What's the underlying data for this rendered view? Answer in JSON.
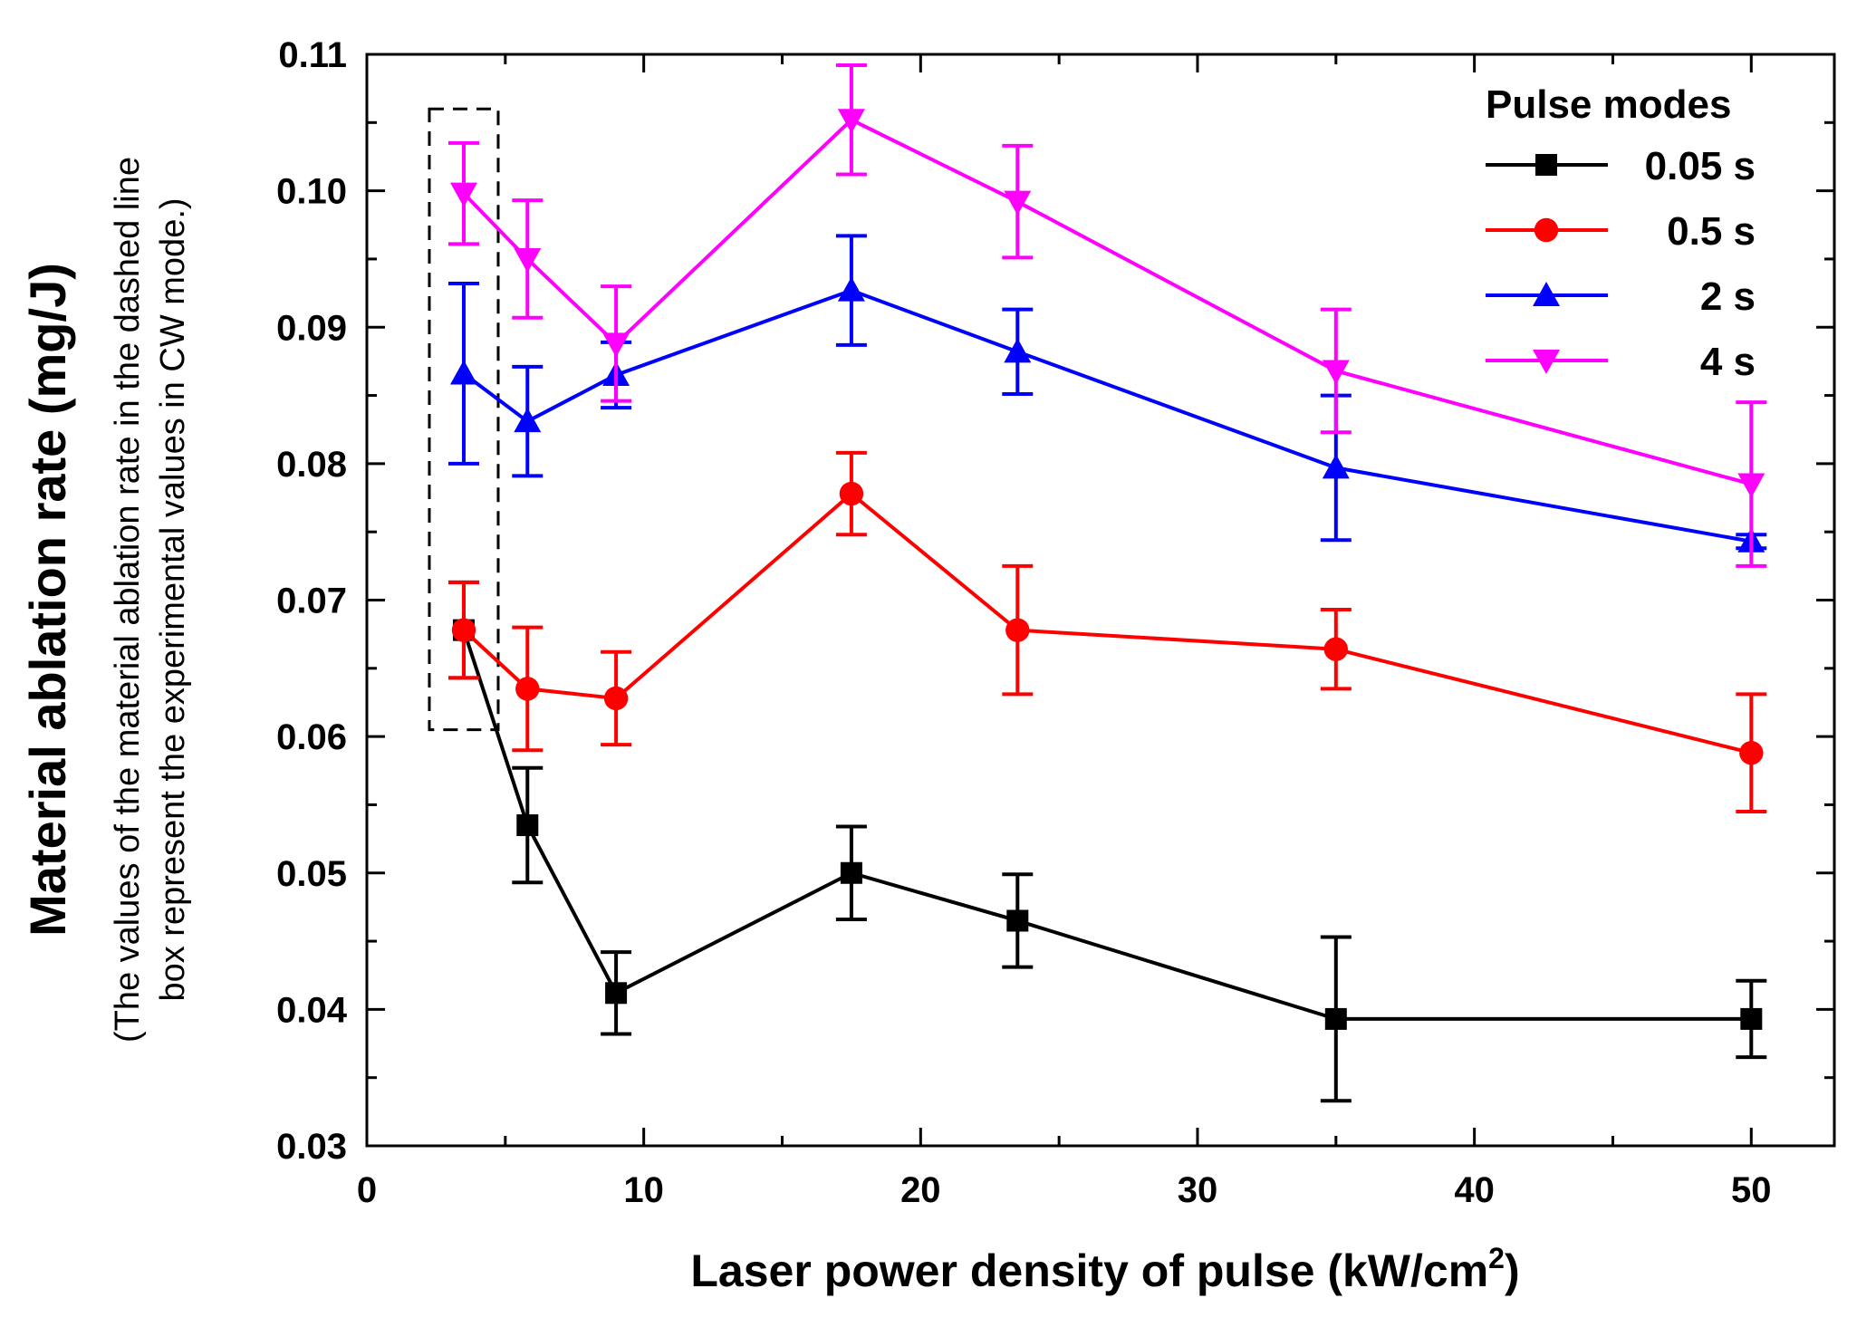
{
  "chart_data": {
    "type": "line",
    "xlabel": "Laser power density of pulse (kW/cm",
    "xlabel_sup": "2",
    "xlabel_end": ")",
    "ylabel": "Material ablation rate (mg/J)",
    "ylabel_note_line1": "(The values of the material ablation rate in the dashed line",
    "ylabel_note_line2": "box represent the experimental values in CW mode.)",
    "xlim": [
      0,
      53
    ],
    "ylim": [
      0.03,
      0.11
    ],
    "x_ticks": [
      0,
      10,
      20,
      30,
      40,
      50
    ],
    "x_tick_labels": [
      "0",
      "10",
      "20",
      "30",
      "40",
      "50"
    ],
    "y_ticks": [
      0.03,
      0.04,
      0.05,
      0.06,
      0.07,
      0.08,
      0.09,
      0.1,
      0.11
    ],
    "y_tick_labels": [
      "0.03",
      "0.04",
      "0.05",
      "0.06",
      "0.07",
      "0.08",
      "0.09",
      "0.10",
      "0.11"
    ],
    "legend_title": "Pulse modes",
    "legend_position": "top-right",
    "x": [
      3.5,
      5.8,
      9.0,
      17.5,
      23.5,
      35.0,
      50.0
    ],
    "series": [
      {
        "name": "0.05 s",
        "color": "#000000",
        "marker": "square",
        "values": [
          0.0678,
          0.0535,
          0.0412,
          0.05,
          0.0465,
          0.0393,
          0.0393
        ],
        "errors": [
          0.0035,
          0.0042,
          0.003,
          0.0034,
          0.0034,
          0.006,
          0.0028
        ]
      },
      {
        "name": "0.5 s",
        "color": "#ff0000",
        "marker": "circle",
        "values": [
          0.0678,
          0.0635,
          0.0628,
          0.0778,
          0.0678,
          0.0664,
          0.0588
        ],
        "errors": [
          0.0035,
          0.0045,
          0.0034,
          0.003,
          0.0047,
          0.0029,
          0.0043
        ]
      },
      {
        "name": "2 s",
        "color": "#0000ff",
        "marker": "triangle-up",
        "values": [
          0.0866,
          0.0831,
          0.0865,
          0.0927,
          0.0882,
          0.0797,
          0.0743
        ],
        "errors": [
          0.0066,
          0.004,
          0.0024,
          0.004,
          0.0031,
          0.0053,
          0.0005
        ]
      },
      {
        "name": "4 s",
        "color": "#ff00ff",
        "marker": "triangle-down",
        "values": [
          0.0998,
          0.095,
          0.0888,
          0.1052,
          0.0992,
          0.0868,
          0.0785
        ],
        "errors": [
          0.0037,
          0.0043,
          0.0042,
          0.004,
          0.0041,
          0.0045,
          0.006
        ]
      }
    ],
    "annotation": "dashed box around CW mode values at x = 3.5"
  }
}
